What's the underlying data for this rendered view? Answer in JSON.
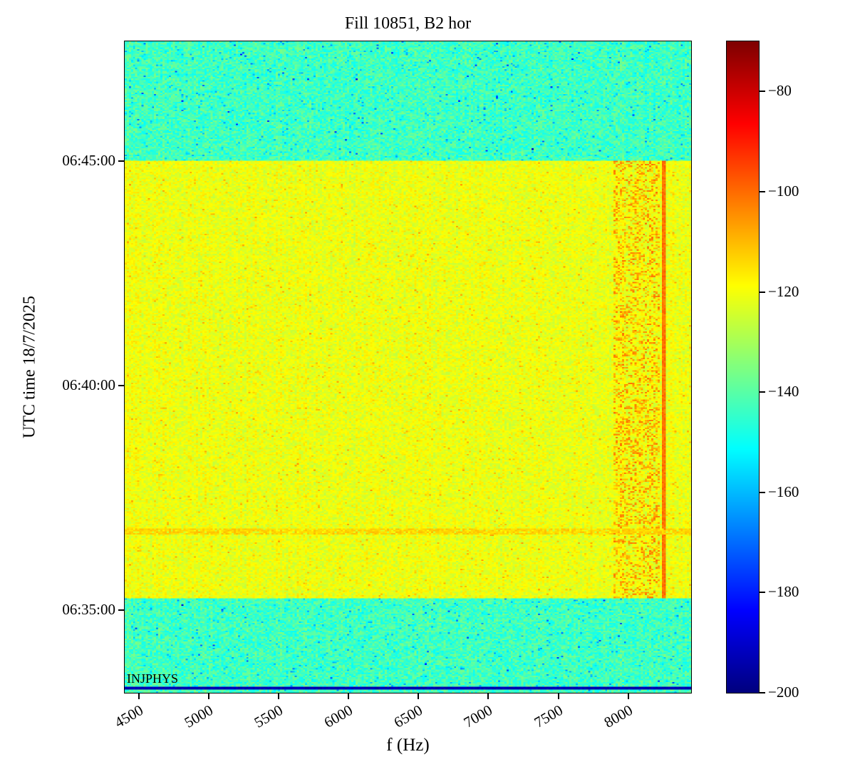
{
  "figure": {
    "title": "Fill 10851, B2 hor",
    "xlabel": "f (Hz)",
    "ylabel": "UTC time 18/7/2025",
    "annotation": "INJPHYS"
  },
  "chart_data": {
    "type": "heatmap",
    "title": "Fill 10851, B2 hor",
    "xlabel": "f (Hz)",
    "ylabel": "UTC time 18/7/2025",
    "colormap": "jet",
    "grid": false,
    "legend_position": "colorbar-right",
    "x_range_hz": [
      4400,
      8450
    ],
    "x_ticks": [
      4500,
      5000,
      5500,
      6000,
      6500,
      7000,
      7500,
      8000
    ],
    "y_time_start": "06:33:10",
    "y_time_end": "06:47:40",
    "y_ticks": [
      "06:45:00",
      "06:40:00",
      "06:35:00"
    ],
    "colorbar": {
      "vmin": -200,
      "vmax": -70,
      "ticks": [
        -80,
        -100,
        -120,
        -140,
        -160,
        -180,
        -200
      ]
    },
    "regions": [
      {
        "name": "top-quiet-band",
        "time": [
          "06:45:00",
          "06:47:40"
        ],
        "level_db": -143,
        "noise_db": 7
      },
      {
        "name": "beam-band",
        "time": [
          "06:35:17",
          "06:45:00"
        ],
        "level_db": -121,
        "noise_db": 5
      },
      {
        "name": "bottom-quiet-band",
        "time": [
          "06:33:10",
          "06:35:17"
        ],
        "level_db": -143,
        "noise_db": 7
      }
    ],
    "features": [
      {
        "name": "orange-activity",
        "freq_hz": [
          7900,
          8230
        ],
        "time": [
          "06:35:17",
          "06:45:00"
        ],
        "level_db": -107
      },
      {
        "name": "vertical-line",
        "freq_hz": [
          8240,
          8266
        ],
        "time": [
          "06:35:17",
          "06:45:00"
        ],
        "level_db": -101
      },
      {
        "name": "horizontal-line",
        "time_row": "06:36:46",
        "level_db": -113
      },
      {
        "name": "injphys-line",
        "time_row": "06:33:16",
        "level_db": -196,
        "label": "INJPHYS"
      }
    ],
    "annotation": "INJPHYS"
  }
}
